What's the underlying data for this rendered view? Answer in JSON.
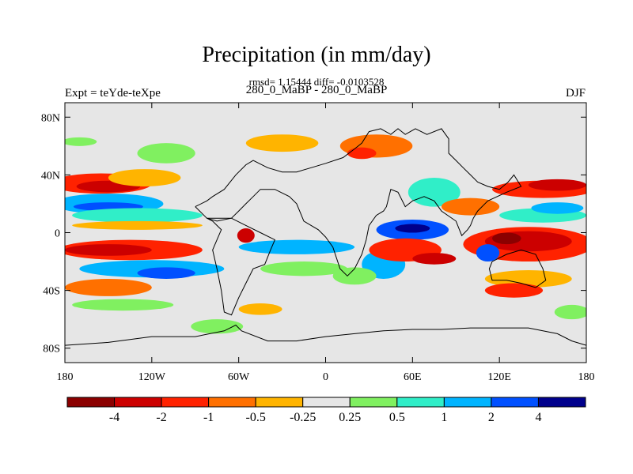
{
  "chart_data": {
    "type": "heatmap",
    "title": "Precipitation (in mm/day)",
    "stats": "rmsd= 1.15444 diff= -0.0103528",
    "subtitle": "280_0_MaBP - 280_0_MaBP",
    "left_label": "Expt = teYde-teXpe",
    "right_label": "DJF",
    "x_range": [
      -180,
      180
    ],
    "y_range": [
      -90,
      90
    ],
    "x_ticks": [
      {
        "value": -180,
        "label": "180"
      },
      {
        "value": -120,
        "label": "120W"
      },
      {
        "value": -60,
        "label": "60W"
      },
      {
        "value": 0,
        "label": "0"
      },
      {
        "value": 60,
        "label": "60E"
      },
      {
        "value": 120,
        "label": "120E"
      },
      {
        "value": 180,
        "label": "180"
      }
    ],
    "y_ticks": [
      {
        "value": 80,
        "label": "80N"
      },
      {
        "value": 40,
        "label": "40N"
      },
      {
        "value": 0,
        "label": "0"
      },
      {
        "value": -40,
        "label": "40S"
      },
      {
        "value": -80,
        "label": "80S"
      }
    ],
    "colorbar": {
      "colors": [
        "#8b0000",
        "#cc0000",
        "#ff2200",
        "#ff7000",
        "#ffb400",
        "#e6e6e6",
        "#80f060",
        "#30eec8",
        "#00b4ff",
        "#0050ff",
        "#00008c"
      ],
      "labels": [
        "-4",
        "-2",
        "-1",
        "-0.5",
        "-0.25",
        "0.25",
        "0.5",
        "1",
        "2",
        "4"
      ]
    },
    "anomaly_regions": [
      {
        "lon": -155,
        "lat": 34,
        "rx": 35,
        "ry": 7,
        "level": -1.2
      },
      {
        "lon": -150,
        "lat": 32,
        "rx": 22,
        "ry": 4,
        "level": -2.5
      },
      {
        "lon": -125,
        "lat": 38,
        "rx": 25,
        "ry": 6,
        "level": -0.4
      },
      {
        "lon": -150,
        "lat": 20,
        "rx": 38,
        "ry": 7,
        "level": 1.5
      },
      {
        "lon": -150,
        "lat": 18,
        "rx": 24,
        "ry": 3,
        "level": 3.5
      },
      {
        "lon": -130,
        "lat": 12,
        "rx": 45,
        "ry": 5,
        "level": 0.7
      },
      {
        "lon": -130,
        "lat": 5,
        "rx": 45,
        "ry": 3,
        "level": -0.3
      },
      {
        "lon": -135,
        "lat": -12,
        "rx": 50,
        "ry": 7,
        "level": -1.8
      },
      {
        "lon": -150,
        "lat": -12,
        "rx": 30,
        "ry": 4,
        "level": -3.5
      },
      {
        "lon": -120,
        "lat": -25,
        "rx": 50,
        "ry": 6,
        "level": 1.2
      },
      {
        "lon": -110,
        "lat": -28,
        "rx": 20,
        "ry": 4,
        "level": 2.5
      },
      {
        "lon": -150,
        "lat": -38,
        "rx": 30,
        "ry": 6,
        "level": -0.6
      },
      {
        "lon": -140,
        "lat": -50,
        "rx": 35,
        "ry": 4,
        "level": 0.4
      },
      {
        "lon": -110,
        "lat": 55,
        "rx": 20,
        "ry": 7,
        "level": 0.4
      },
      {
        "lon": -30,
        "lat": 62,
        "rx": 25,
        "ry": 6,
        "level": -0.4
      },
      {
        "lon": -20,
        "lat": -10,
        "rx": 40,
        "ry": 5,
        "level": 1.2
      },
      {
        "lon": -15,
        "lat": -25,
        "rx": 30,
        "ry": 5,
        "level": 0.4
      },
      {
        "lon": -75,
        "lat": -65,
        "rx": 18,
        "ry": 5,
        "level": 0.4
      },
      {
        "lon": -45,
        "lat": -53,
        "rx": 15,
        "ry": 4,
        "level": -0.4
      },
      {
        "lon": -55,
        "lat": -2,
        "rx": 6,
        "ry": 5,
        "level": -2.5
      },
      {
        "lon": 40,
        "lat": -22,
        "rx": 15,
        "ry": 10,
        "level": 1.5
      },
      {
        "lon": 20,
        "lat": -30,
        "rx": 15,
        "ry": 6,
        "level": 0.4
      },
      {
        "lon": 60,
        "lat": 2,
        "rx": 25,
        "ry": 7,
        "level": 2.5
      },
      {
        "lon": 60,
        "lat": 3,
        "rx": 12,
        "ry": 3,
        "level": 5
      },
      {
        "lon": 55,
        "lat": -12,
        "rx": 25,
        "ry": 8,
        "level": -1.2
      },
      {
        "lon": 75,
        "lat": -18,
        "rx": 15,
        "ry": 4,
        "level": -2.5
      },
      {
        "lon": 75,
        "lat": 28,
        "rx": 18,
        "ry": 10,
        "level": 0.7
      },
      {
        "lon": 35,
        "lat": 60,
        "rx": 25,
        "ry": 8,
        "level": -0.6
      },
      {
        "lon": 25,
        "lat": 55,
        "rx": 10,
        "ry": 4,
        "level": -1.2
      },
      {
        "lon": 100,
        "lat": 18,
        "rx": 20,
        "ry": 6,
        "level": -0.6
      },
      {
        "lon": 140,
        "lat": -8,
        "rx": 45,
        "ry": 12,
        "level": -1.2
      },
      {
        "lon": 140,
        "lat": -6,
        "rx": 30,
        "ry": 7,
        "level": -3
      },
      {
        "lon": 125,
        "lat": -4,
        "rx": 10,
        "ry": 4,
        "level": -5
      },
      {
        "lon": 112,
        "lat": -14,
        "rx": 8,
        "ry": 6,
        "level": 3.5
      },
      {
        "lon": 150,
        "lat": 12,
        "rx": 30,
        "ry": 5,
        "level": 0.7
      },
      {
        "lon": 160,
        "lat": 17,
        "rx": 18,
        "ry": 4,
        "level": 1.5
      },
      {
        "lon": 150,
        "lat": 30,
        "rx": 35,
        "ry": 6,
        "level": -1.2
      },
      {
        "lon": 160,
        "lat": 33,
        "rx": 20,
        "ry": 4,
        "level": -2.5
      },
      {
        "lon": 140,
        "lat": -32,
        "rx": 30,
        "ry": 6,
        "level": -0.4
      },
      {
        "lon": 130,
        "lat": -40,
        "rx": 20,
        "ry": 5,
        "level": -1.2
      },
      {
        "lon": 170,
        "lat": -55,
        "rx": 12,
        "ry": 5,
        "level": 0.4
      },
      {
        "lon": -170,
        "lat": 63,
        "rx": 12,
        "ry": 3,
        "level": 0.4
      }
    ],
    "land_outline": [
      [
        [
          -90,
          18
        ],
        [
          -82,
          22
        ],
        [
          -78,
          25
        ],
        [
          -70,
          30
        ],
        [
          -62,
          40
        ],
        [
          -55,
          47
        ],
        [
          -50,
          50
        ],
        [
          -40,
          45
        ],
        [
          -30,
          42
        ],
        [
          -20,
          42
        ],
        [
          -10,
          45
        ],
        [
          0,
          48
        ],
        [
          12,
          52
        ],
        [
          20,
          58
        ],
        [
          25,
          62
        ],
        [
          30,
          70
        ],
        [
          38,
          72
        ],
        [
          45,
          68
        ],
        [
          50,
          72
        ],
        [
          55,
          68
        ],
        [
          62,
          72
        ],
        [
          70,
          68
        ],
        [
          80,
          72
        ],
        [
          85,
          65
        ],
        [
          85,
          55
        ],
        [
          90,
          50
        ],
        [
          95,
          45
        ],
        [
          100,
          40
        ],
        [
          105,
          35
        ],
        [
          112,
          32
        ],
        [
          120,
          30
        ],
        [
          126,
          35
        ],
        [
          130,
          40
        ],
        [
          135,
          32
        ],
        [
          125,
          28
        ],
        [
          112,
          22
        ],
        [
          105,
          15
        ],
        [
          102,
          10
        ],
        [
          100,
          5
        ],
        [
          98,
          2
        ],
        [
          94,
          -2
        ],
        [
          90,
          8
        ],
        [
          80,
          15
        ],
        [
          75,
          22
        ],
        [
          68,
          25
        ],
        [
          60,
          22
        ],
        [
          55,
          18
        ],
        [
          50,
          28
        ],
        [
          45,
          30
        ],
        [
          42,
          18
        ],
        [
          40,
          15
        ],
        [
          35,
          12
        ],
        [
          30,
          5
        ],
        [
          28,
          -5
        ],
        [
          25,
          -15
        ],
        [
          20,
          -25
        ],
        [
          15,
          -30
        ],
        [
          10,
          -25
        ],
        [
          5,
          -10
        ],
        [
          0,
          -3
        ],
        [
          -5,
          2
        ],
        [
          -10,
          5
        ],
        [
          -15,
          8
        ],
        [
          -20,
          20
        ],
        [
          -25,
          25
        ],
        [
          -35,
          30
        ],
        [
          -45,
          30
        ],
        [
          -50,
          25
        ],
        [
          -55,
          20
        ],
        [
          -60,
          15
        ],
        [
          -65,
          10
        ],
        [
          -75,
          8
        ],
        [
          -82,
          10
        ],
        [
          -90,
          18
        ]
      ],
      [
        [
          -82,
          10
        ],
        [
          -78,
          8
        ],
        [
          -75,
          5
        ],
        [
          -72,
          2
        ],
        [
          -75,
          -5
        ],
        [
          -78,
          -12
        ],
        [
          -75,
          -25
        ],
        [
          -72,
          -40
        ],
        [
          -70,
          -55
        ],
        [
          -65,
          -57
        ],
        [
          -60,
          -45
        ],
        [
          -55,
          -35
        ],
        [
          -50,
          -25
        ],
        [
          -42,
          -22
        ],
        [
          -38,
          -12
        ],
        [
          -35,
          -5
        ],
        [
          -45,
          0
        ],
        [
          -55,
          5
        ],
        [
          -65,
          10
        ],
        [
          -75,
          10
        ],
        [
          -82,
          10
        ]
      ],
      [
        [
          115,
          -20
        ],
        [
          125,
          -15
        ],
        [
          135,
          -12
        ],
        [
          145,
          -15
        ],
        [
          150,
          -25
        ],
        [
          152,
          -33
        ],
        [
          145,
          -38
        ],
        [
          135,
          -35
        ],
        [
          125,
          -33
        ],
        [
          115,
          -33
        ],
        [
          113,
          -25
        ],
        [
          115,
          -20
        ]
      ],
      [
        [
          -180,
          -78
        ],
        [
          -150,
          -76
        ],
        [
          -120,
          -72
        ],
        [
          -90,
          -72
        ],
        [
          -70,
          -68
        ],
        [
          -62,
          -64
        ],
        [
          -58,
          -68
        ],
        [
          -40,
          -75
        ],
        [
          -20,
          -75
        ],
        [
          0,
          -72
        ],
        [
          20,
          -70
        ],
        [
          40,
          -68
        ],
        [
          60,
          -67
        ],
        [
          80,
          -67
        ],
        [
          100,
          -66
        ],
        [
          120,
          -66
        ],
        [
          140,
          -66
        ],
        [
          160,
          -70
        ],
        [
          170,
          -75
        ],
        [
          180,
          -78
        ]
      ]
    ]
  }
}
